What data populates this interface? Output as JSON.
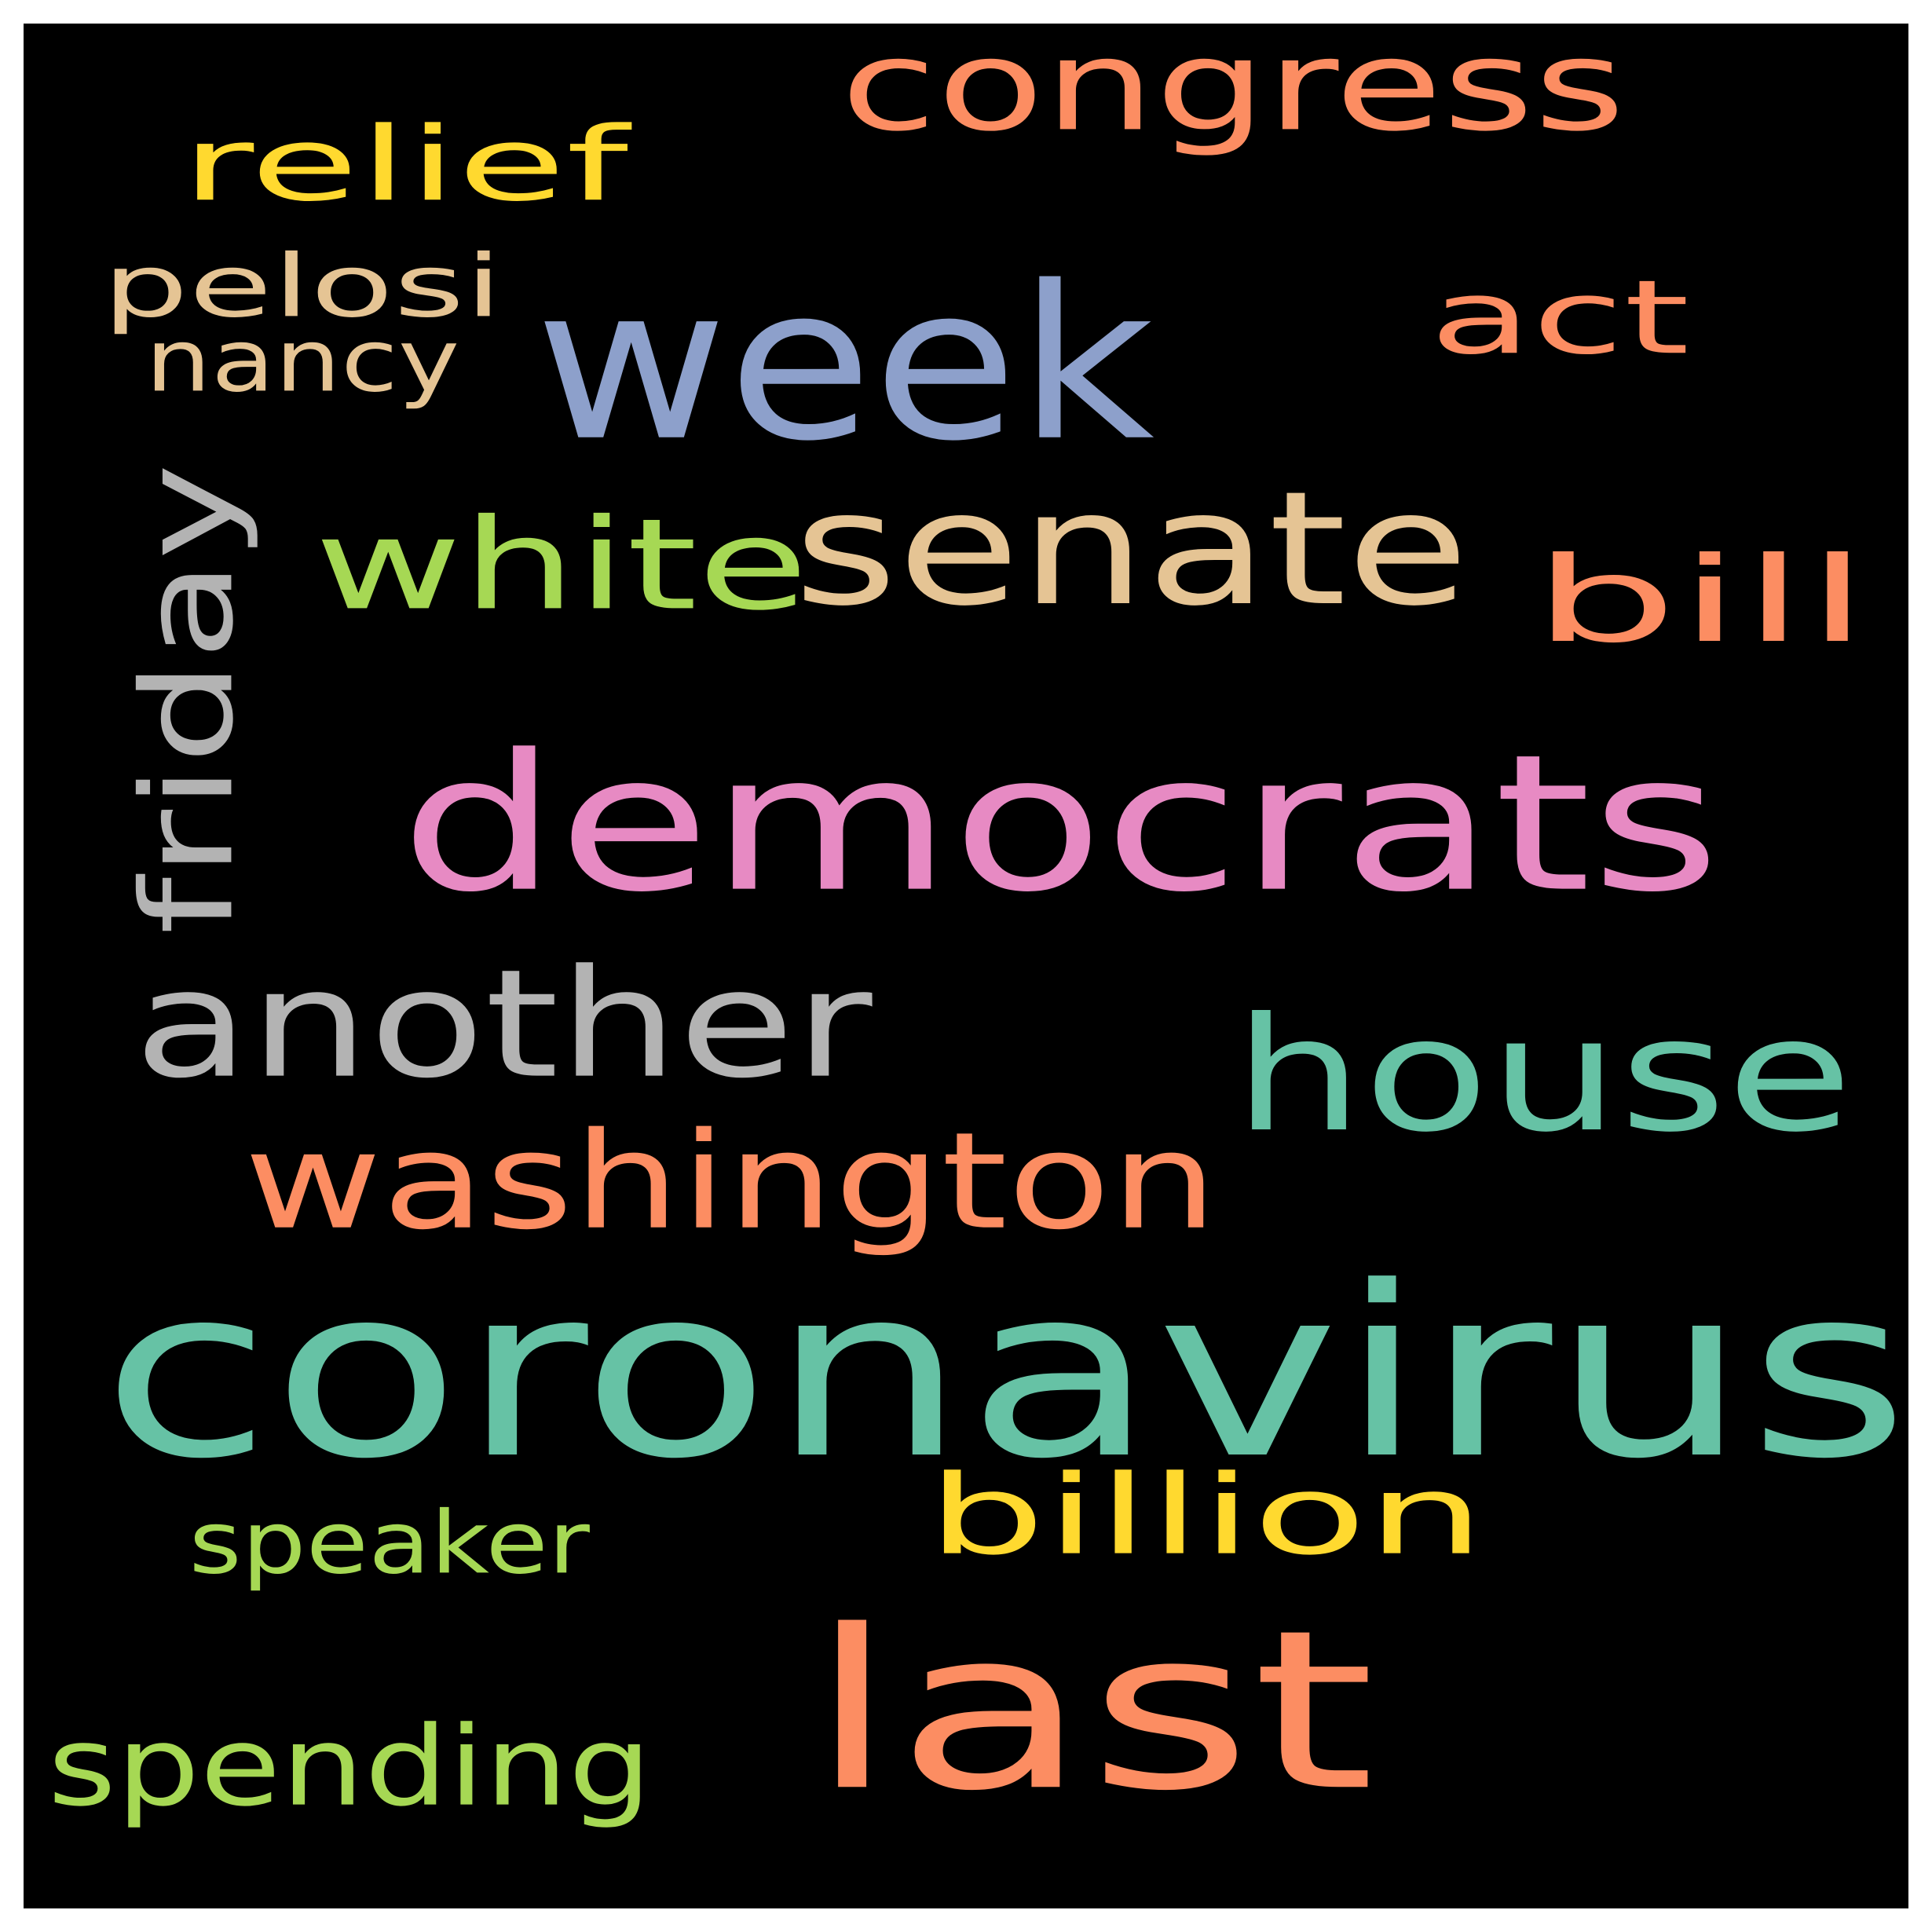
{
  "background": "#000000",
  "words": [
    {
      "text": "coronavirus",
      "color": "#66c2a5",
      "vertical": false
    },
    {
      "text": "democrats",
      "color": "#e78ac3",
      "vertical": false
    },
    {
      "text": "week",
      "color": "#8da0cb",
      "vertical": false
    },
    {
      "text": "last",
      "color": "#fc8d62",
      "vertical": false
    },
    {
      "text": "senate",
      "color": "#e5c494",
      "vertical": false
    },
    {
      "text": "house",
      "color": "#66c2a5",
      "vertical": false
    },
    {
      "text": "another",
      "color": "#b3b3b3",
      "vertical": false
    },
    {
      "text": "washington",
      "color": "#fc8d62",
      "vertical": false
    },
    {
      "text": "congress",
      "color": "#fc8d62",
      "vertical": false
    },
    {
      "text": "white",
      "color": "#a6d854",
      "vertical": false
    },
    {
      "text": "bill",
      "color": "#fc8d62",
      "vertical": false
    },
    {
      "text": "friday",
      "color": "#b3b3b3",
      "vertical": true
    },
    {
      "text": "billion",
      "color": "#ffd92f",
      "vertical": false
    },
    {
      "text": "spending",
      "color": "#a6d854",
      "vertical": false
    },
    {
      "text": "act",
      "color": "#fc8d62",
      "vertical": false
    },
    {
      "text": "relief",
      "color": "#ffd92f",
      "vertical": false
    },
    {
      "text": "pelosi",
      "color": "#e5c494",
      "vertical": false
    },
    {
      "text": "nancy",
      "color": "#e5c494",
      "vertical": false
    },
    {
      "text": "speaker",
      "color": "#a6d854",
      "vertical": false
    }
  ]
}
